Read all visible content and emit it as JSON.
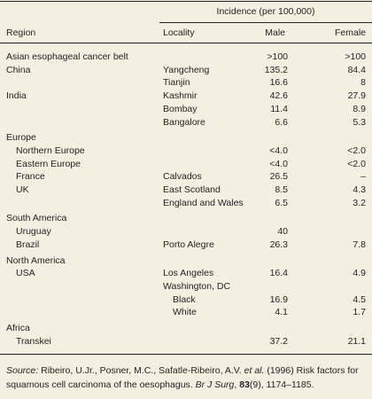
{
  "table": {
    "group_header": "Incidence (per 100,000)",
    "columns": [
      "Region",
      "Locality",
      "Male",
      "Female"
    ],
    "rows": [
      [
        "Asian esophageal cancer belt",
        null,
        ">100",
        ">100"
      ],
      [
        "China",
        "Yangcheng",
        135.2,
        84.4
      ],
      [
        null,
        "Tianjin",
        16.6,
        8
      ],
      [
        "India",
        "Kashmir",
        42.6,
        27.9
      ],
      [
        null,
        "Bombay",
        11.4,
        8.9
      ],
      [
        null,
        "Bangalore",
        6.6,
        5.3
      ],
      [
        "Europe",
        null,
        null,
        null
      ],
      [
        "Northern Europe",
        null,
        "<4.0",
        "<2.0"
      ],
      [
        "Eastern Europe",
        null,
        "<4.0",
        "<2.0"
      ],
      [
        "France",
        "Calvados",
        26.5,
        "–"
      ],
      [
        "UK",
        "East Scotland",
        8.5,
        4.3
      ],
      [
        null,
        "England and Wales",
        6.5,
        3.2
      ],
      [
        "South America",
        null,
        null,
        null
      ],
      [
        "Uruguay",
        null,
        40,
        null
      ],
      [
        "Brazil",
        "Porto Alegre",
        26.3,
        7.8
      ],
      [
        "North America",
        null,
        null,
        null
      ],
      [
        "USA",
        "Los Angeles",
        16.4,
        4.9
      ],
      [
        null,
        "Washington, DC",
        null,
        null
      ],
      [
        null,
        "Black",
        16.9,
        4.5
      ],
      [
        null,
        "White",
        4.1,
        1.7
      ],
      [
        "Africa",
        null,
        null,
        null
      ],
      [
        "Transkei",
        null,
        37.2,
        21.1
      ]
    ]
  },
  "source": [
    "Source:",
    " Ribeiro, U.Jr., Posner, M.C., Safatle-Ribeiro, A.V. ",
    "et al.",
    " (1996) Risk factors for squamous cell carcinoma of the oesophagus. ",
    "Br J Surg",
    ", ",
    "83",
    "(9), 1174–1185."
  ]
}
